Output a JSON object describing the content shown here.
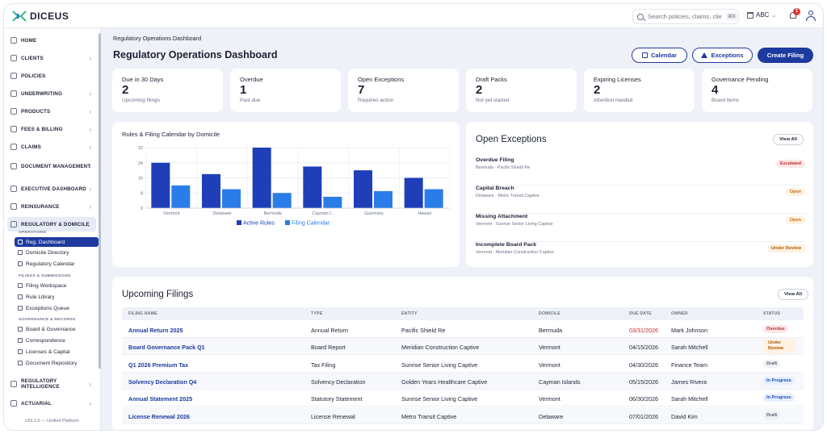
{
  "app": {
    "brand": "DICEUS"
  },
  "topbar": {
    "search_placeholder": "Search policies, claims, clients",
    "search_shortcut": "⌘K",
    "tenant": "ABC",
    "notifications_count": "1"
  },
  "sidebar": {
    "nav": [
      {
        "label": "HOME"
      },
      {
        "label": "CLIENTS"
      },
      {
        "label": "POLICIES"
      },
      {
        "label": "UNDERWRITING"
      },
      {
        "label": "PRODUCTS"
      },
      {
        "label": "FEES & BILLING"
      },
      {
        "label": "CLAIMS"
      },
      {
        "label": "DOCUMENT MANAGEMENT"
      },
      {
        "label": "EXECUTIVE DASHBOARD"
      },
      {
        "label": "REINSURANCE"
      },
      {
        "label": "REGULATORY & DOMICILE"
      }
    ],
    "sections": {
      "operations": "OPERATIONS",
      "filings": "FILINGS & SUBMISSIONS",
      "governance": "GOVERNANCE & RECORDS"
    },
    "sub": [
      {
        "label": "Reg. Dashboard"
      },
      {
        "label": "Domicile Directory"
      },
      {
        "label": "Regulatory Calendar"
      },
      {
        "label": "Filing Workspace"
      },
      {
        "label": "Rule Library"
      },
      {
        "label": "Exceptions Queue"
      },
      {
        "label": "Board & Governance"
      },
      {
        "label": "Correspondence"
      },
      {
        "label": "Licenses & Capital"
      },
      {
        "label": "Document Repository"
      }
    ],
    "nav_bottom": [
      {
        "label": "REGULATORY INTELLIGENCE"
      },
      {
        "label": "ACTUARIAL"
      }
    ],
    "version": "v33.1.0 — Unified Platform"
  },
  "main": {
    "breadcrumb": "Regulatory Operations Dashboard",
    "title": "Regulatory Operations Dashboard",
    "actions": {
      "calendar": "Calendar",
      "exceptions": "Exceptions",
      "create": "Create Filing"
    }
  },
  "kpis": [
    {
      "label": "Due in 30 Days",
      "value": "2",
      "sub": "Upcoming filings"
    },
    {
      "label": "Overdue",
      "value": "1",
      "sub": "Past due"
    },
    {
      "label": "Open Exceptions",
      "value": "7",
      "sub": "Requires action"
    },
    {
      "label": "Draft Packs",
      "value": "2",
      "sub": "Not yet started"
    },
    {
      "label": "Expiring Licenses",
      "value": "2",
      "sub": "Attention needed"
    },
    {
      "label": "Governance Pending",
      "value": "4",
      "sub": "Board items"
    }
  ],
  "chart_data": {
    "type": "bar",
    "title": "Rules & Filing Calendar by Domicile",
    "categories": [
      "Vermont",
      "Delaware",
      "Bermuda",
      "Cayman I...",
      "Guernsey",
      "Hawaii"
    ],
    "series": [
      {
        "name": "Active Rules",
        "values": [
          24,
          18,
          32,
          22,
          20,
          16
        ],
        "color": "#1e3fb8"
      },
      {
        "name": "Filing Calendar",
        "values": [
          12,
          10,
          8,
          6,
          9,
          10
        ],
        "color": "#2a7de8"
      }
    ],
    "ylim": [
      0,
      32
    ],
    "yticks": [
      "0",
      "8",
      "16",
      "24",
      "32"
    ],
    "grid": true,
    "legend": "bottom"
  },
  "exceptions": {
    "title": "Open Exceptions",
    "view_all": "View All",
    "items": [
      {
        "title": "Overdue Filing",
        "sub": "Bermuda · Pacific Shield Re",
        "status": "Escalated",
        "kind": "escalated"
      },
      {
        "title": "Capital Breach",
        "sub": "Delaware · Metro Transit Captive",
        "status": "Open",
        "kind": "open"
      },
      {
        "title": "Missing Attachment",
        "sub": "Vermont · Sunrise Senior Living Captive",
        "status": "Open",
        "kind": "open"
      },
      {
        "title": "Incomplete Board Pack",
        "sub": "Vermont · Meridian Construction Captive",
        "status": "Under Review",
        "kind": "review"
      }
    ]
  },
  "filings": {
    "title": "Upcoming Filings",
    "view_all": "View All",
    "columns": [
      "FILING NAME",
      "TYPE",
      "ENTITY",
      "DOMICILE",
      "DUE DATE",
      "OWNER",
      "STATUS"
    ],
    "rows": [
      {
        "name": "Annual Return 2025",
        "type": "Annual Return",
        "entity": "Pacific Shield Re",
        "domicile": "Bermuda",
        "due": "03/31/2026",
        "owner": "Mark Johnson",
        "status": "Overdue",
        "kind": "overdue"
      },
      {
        "name": "Board Governance Pack Q1",
        "type": "Board Report",
        "entity": "Meridian Construction Captive",
        "domicile": "Vermont",
        "due": "04/15/2026",
        "owner": "Sarah Mitchell",
        "status": "Under Review",
        "kind": "review"
      },
      {
        "name": "Q1 2026 Premium Tax",
        "type": "Tax Filing",
        "entity": "Sunrise Senior Living Captive",
        "domicile": "Vermont",
        "due": "04/30/2026",
        "owner": "Finance Team",
        "status": "Draft",
        "kind": "draft"
      },
      {
        "name": "Solvency Declaration Q4",
        "type": "Solvency Declaration",
        "entity": "Golden Years Healthcare Captive",
        "domicile": "Cayman Islands",
        "due": "05/15/2026",
        "owner": "James Rivera",
        "status": "In Progress",
        "kind": "progress"
      },
      {
        "name": "Annual Statement 2025",
        "type": "Statutory Statement",
        "entity": "Sunrise Senior Living Captive",
        "domicile": "Vermont",
        "due": "06/30/2026",
        "owner": "Sarah Mitchell",
        "status": "In Progress",
        "kind": "progress"
      },
      {
        "name": "License Renewal 2026",
        "type": "License Renewal",
        "entity": "Metro Transit Captive",
        "domicile": "Delaware",
        "due": "07/01/2026",
        "owner": "David Kim",
        "status": "Draft",
        "kind": "draft"
      }
    ]
  }
}
